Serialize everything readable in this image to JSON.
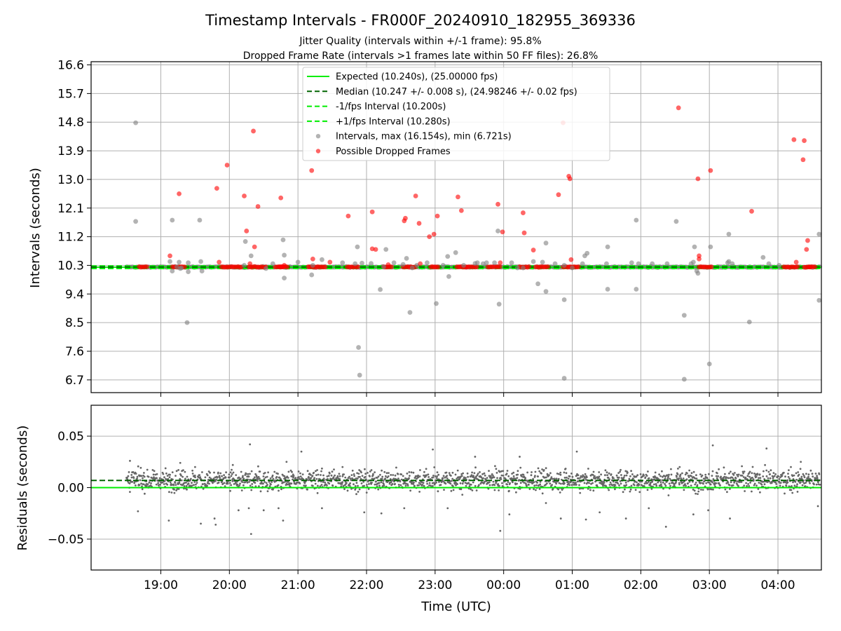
{
  "title": "Timestamp Intervals - FR000F_20240910_182955_369336",
  "subtitles": [
    "Jitter Quality (intervals within +/-1 frame): 95.8%",
    "Dropped Frame Rate (intervals >1 frames late within 50 FF files): 26.8%"
  ],
  "colors": {
    "expected": "#00ee00",
    "median": "#006400",
    "interval_points": "#808080",
    "dropped_points": "#ff0000",
    "residual_points": "#666666",
    "grid": "#b0b0b0"
  },
  "chart_data": [
    {
      "type": "scatter",
      "panel": "intervals",
      "ylabel": "Intervals (seconds)",
      "ylim": [
        6.3,
        16.7
      ],
      "yticks": [
        "6.7",
        "7.6",
        "8.5",
        "9.4",
        "10.3",
        "11.2",
        "12.1",
        "13.0",
        "13.9",
        "14.8",
        "15.7",
        "16.6"
      ],
      "grid": true,
      "legend_position": "top-center",
      "legend": [
        {
          "kind": "line",
          "style": "solid",
          "color": "#00ee00",
          "label": "Expected (10.240s), (25.00000 fps)"
        },
        {
          "kind": "line",
          "style": "dashed",
          "color": "#006400",
          "label": "Median (10.247 +/- 0.008 s), (24.98246 +/- 0.02 fps)"
        },
        {
          "kind": "line",
          "style": "dashed",
          "color": "#00ee00",
          "label": "-1/fps Interval (10.200s)"
        },
        {
          "kind": "line",
          "style": "dashed",
          "color": "#00ee00",
          "label": "+1/fps Interval (10.280s)"
        },
        {
          "kind": "marker",
          "color": "#808080",
          "label": "Intervals, max (16.154s), min (6.721s)"
        },
        {
          "kind": "marker",
          "color": "#ff0000",
          "label": "Possible Dropped Frames"
        }
      ],
      "reference_lines": {
        "expected": 10.24,
        "median": 10.247,
        "minus_1fps": 10.2,
        "plus_1fps": 10.28
      },
      "dense_band": {
        "y": 10.247,
        "x_start": "18:30",
        "x_end": "04:37",
        "description": "continuous band of intervals near the expected value"
      },
      "dropped_clusters": [
        [
          "18:41",
          "18:48"
        ],
        [
          "19:10",
          "19:21"
        ],
        [
          "19:53",
          "20:11"
        ],
        [
          "20:17",
          "20:33"
        ],
        [
          "20:40",
          "20:47"
        ],
        [
          "20:44",
          "20:52"
        ],
        [
          "21:09",
          "21:24"
        ],
        [
          "21:43",
          "21:53"
        ],
        [
          "22:15",
          "22:23"
        ],
        [
          "22:32",
          "22:43"
        ],
        [
          "22:56",
          "23:04"
        ],
        [
          "23:19",
          "23:28"
        ],
        [
          "23:27",
          "23:37"
        ],
        [
          "23:46",
          "23:53"
        ],
        [
          "23:54",
          "23:58"
        ],
        [
          "00:14",
          "00:23"
        ],
        [
          "00:28",
          "00:40"
        ],
        [
          "00:52",
          "01:06"
        ],
        [
          "02:51",
          "03:02"
        ],
        [
          "04:05",
          "04:18"
        ],
        [
          "04:23",
          "04:33"
        ]
      ],
      "series": [
        {
          "name": "Intervals",
          "color": "#808080",
          "points": [
            [
              "18:38",
              14.78
            ],
            [
              "18:38",
              11.68
            ],
            [
              "19:08",
              10.42
            ],
            [
              "19:10",
              10.12
            ],
            [
              "19:10",
              11.72
            ],
            [
              "19:14",
              10.25
            ],
            [
              "19:16",
              10.4
            ],
            [
              "19:17",
              10.2
            ],
            [
              "19:18",
              10.22
            ],
            [
              "19:23",
              8.5
            ],
            [
              "19:24",
              10.1
            ],
            [
              "19:24",
              10.38
            ],
            [
              "19:34",
              11.72
            ],
            [
              "19:35",
              10.42
            ],
            [
              "19:36",
              10.12
            ],
            [
              "20:13",
              10.3
            ],
            [
              "20:14",
              11.05
            ],
            [
              "20:19",
              10.6
            ],
            [
              "20:32",
              10.2
            ],
            [
              "20:38",
              10.35
            ],
            [
              "20:47",
              11.1
            ],
            [
              "20:48",
              10.62
            ],
            [
              "20:48",
              9.9
            ],
            [
              "21:00",
              10.4
            ],
            [
              "21:12",
              10.0
            ],
            [
              "21:13",
              10.3
            ],
            [
              "21:21",
              10.48
            ],
            [
              "21:39",
              10.38
            ],
            [
              "21:50",
              10.35
            ],
            [
              "21:52",
              10.88
            ],
            [
              "21:53",
              7.72
            ],
            [
              "21:54",
              6.85
            ],
            [
              "21:56",
              10.37
            ],
            [
              "22:04",
              10.36
            ],
            [
              "22:12",
              9.54
            ],
            [
              "22:15",
              10.25
            ],
            [
              "22:17",
              10.8
            ],
            [
              "22:24",
              10.38
            ],
            [
              "22:32",
              10.33
            ],
            [
              "22:35",
              10.52
            ],
            [
              "22:38",
              8.82
            ],
            [
              "22:40",
              10.22
            ],
            [
              "22:44",
              10.3
            ],
            [
              "22:53",
              10.38
            ],
            [
              "23:01",
              9.1
            ],
            [
              "23:07",
              10.3
            ],
            [
              "23:11",
              10.58
            ],
            [
              "23:12",
              9.95
            ],
            [
              "23:18",
              10.7
            ],
            [
              "23:25",
              10.3
            ],
            [
              "23:35",
              10.36
            ],
            [
              "23:37",
              10.38
            ],
            [
              "23:42",
              10.35
            ],
            [
              "23:45",
              10.38
            ],
            [
              "23:52",
              10.38
            ],
            [
              "23:55",
              11.38
            ],
            [
              "23:56",
              9.08
            ],
            [
              "00:07",
              10.38
            ],
            [
              "00:12",
              10.22
            ],
            [
              "00:17",
              10.22
            ],
            [
              "00:26",
              10.42
            ],
            [
              "00:30",
              9.72
            ],
            [
              "00:34",
              10.4
            ],
            [
              "00:37",
              11.0
            ],
            [
              "00:37",
              9.48
            ],
            [
              "00:45",
              10.35
            ],
            [
              "00:53",
              10.3
            ],
            [
              "00:53",
              9.22
            ],
            [
              "00:53",
              6.75
            ],
            [
              "01:00",
              10.22
            ],
            [
              "01:09",
              10.35
            ],
            [
              "01:11",
              10.6
            ],
            [
              "01:13",
              10.68
            ],
            [
              "01:30",
              10.35
            ],
            [
              "01:31",
              10.88
            ],
            [
              "01:31",
              9.55
            ],
            [
              "01:52",
              10.38
            ],
            [
              "01:56",
              11.72
            ],
            [
              "01:56",
              9.55
            ],
            [
              "01:58",
              10.35
            ],
            [
              "02:10",
              10.35
            ],
            [
              "02:23",
              10.35
            ],
            [
              "02:31",
              11.68
            ],
            [
              "02:38",
              8.73
            ],
            [
              "02:38",
              6.72
            ],
            [
              "02:44",
              10.35
            ],
            [
              "02:46",
              10.4
            ],
            [
              "02:47",
              10.88
            ],
            [
              "02:49",
              10.12
            ],
            [
              "02:50",
              10.05
            ],
            [
              "03:01",
              10.88
            ],
            [
              "03:00",
              7.2
            ],
            [
              "03:16",
              10.38
            ],
            [
              "03:17",
              11.28
            ],
            [
              "03:17",
              10.42
            ],
            [
              "03:20",
              10.35
            ],
            [
              "03:35",
              8.52
            ],
            [
              "03:47",
              10.55
            ],
            [
              "03:52",
              10.35
            ],
            [
              "04:01",
              10.3
            ],
            [
              "04:36",
              11.28
            ],
            [
              "04:36",
              9.2
            ]
          ]
        },
        {
          "name": "Possible Dropped Frames",
          "color": "#ff0000",
          "points": [
            [
              "19:08",
              10.6
            ],
            [
              "19:16",
              12.55
            ],
            [
              "19:49",
              12.72
            ],
            [
              "19:51",
              10.4
            ],
            [
              "19:58",
              13.45
            ],
            [
              "20:13",
              12.48
            ],
            [
              "20:15",
              11.38
            ],
            [
              "20:18",
              10.35
            ],
            [
              "20:21",
              14.52
            ],
            [
              "20:22",
              10.88
            ],
            [
              "20:25",
              12.15
            ],
            [
              "20:45",
              12.42
            ],
            [
              "20:48",
              10.3
            ],
            [
              "21:12",
              13.28
            ],
            [
              "21:13",
              10.5
            ],
            [
              "21:28",
              10.4
            ],
            [
              "21:44",
              11.85
            ],
            [
              "22:05",
              11.98
            ],
            [
              "22:05",
              10.82
            ],
            [
              "22:08",
              10.8
            ],
            [
              "22:19",
              10.32
            ],
            [
              "22:33",
              11.7
            ],
            [
              "22:34",
              11.78
            ],
            [
              "22:43",
              12.48
            ],
            [
              "22:46",
              11.62
            ],
            [
              "22:47",
              10.35
            ],
            [
              "22:55",
              11.2
            ],
            [
              "22:59",
              11.28
            ],
            [
              "23:02",
              11.85
            ],
            [
              "23:20",
              12.45
            ],
            [
              "23:23",
              12.02
            ],
            [
              "23:55",
              12.22
            ],
            [
              "23:57",
              10.38
            ],
            [
              "23:59",
              11.35
            ],
            [
              "00:17",
              11.95
            ],
            [
              "00:18",
              11.32
            ],
            [
              "00:26",
              10.78
            ],
            [
              "00:48",
              12.52
            ],
            [
              "00:52",
              14.78
            ],
            [
              "00:57",
              13.1
            ],
            [
              "00:58",
              13.02
            ],
            [
              "00:59",
              10.48
            ],
            [
              "02:33",
              15.25
            ],
            [
              "02:50",
              13.02
            ],
            [
              "02:51",
              10.6
            ],
            [
              "02:51",
              10.5
            ],
            [
              "03:01",
              13.28
            ],
            [
              "03:37",
              12.0
            ],
            [
              "04:14",
              14.25
            ],
            [
              "04:16",
              10.4
            ],
            [
              "04:23",
              14.22
            ],
            [
              "04:22",
              13.62
            ],
            [
              "04:26",
              11.08
            ],
            [
              "04:25",
              10.8
            ],
            [
              "04:28",
              10.25
            ]
          ]
        }
      ]
    },
    {
      "type": "scatter",
      "panel": "residuals",
      "xlabel": "Time (UTC)",
      "ylabel": "Residuals (seconds)",
      "ylim": [
        -0.08,
        0.08
      ],
      "yticks": [
        "−0.05",
        "0.00",
        "0.05"
      ],
      "xlim": [
        "17:59",
        "04:38"
      ],
      "xticks": [
        "19:00",
        "20:00",
        "21:00",
        "22:00",
        "23:00",
        "00:00",
        "01:00",
        "02:00",
        "03:00",
        "04:00"
      ],
      "grid": true,
      "reference_lines": {
        "expected": 0.0,
        "median": 0.007
      },
      "series": [
        {
          "name": "Residuals",
          "color": "#666666",
          "x_range": [
            "18:30",
            "04:37"
          ],
          "typical_range": [
            -0.008,
            0.022
          ],
          "center": 0.007,
          "outliers": [
            [
              "18:33",
              0.026
            ],
            [
              "18:40",
              -0.023
            ],
            [
              "19:07",
              -0.032
            ],
            [
              "19:17",
              0.024
            ],
            [
              "19:30",
              0.02
            ],
            [
              "19:35",
              -0.035
            ],
            [
              "19:47",
              -0.03
            ],
            [
              "19:48",
              -0.036
            ],
            [
              "20:03",
              0.022
            ],
            [
              "20:08",
              -0.022
            ],
            [
              "20:17",
              -0.02
            ],
            [
              "20:18",
              0.042
            ],
            [
              "20:19",
              -0.045
            ],
            [
              "20:30",
              -0.022
            ],
            [
              "20:43",
              -0.02
            ],
            [
              "20:47",
              -0.032
            ],
            [
              "20:50",
              0.025
            ],
            [
              "21:03",
              0.035
            ],
            [
              "21:21",
              -0.02
            ],
            [
              "21:39",
              0.02
            ],
            [
              "21:58",
              -0.024
            ],
            [
              "22:13",
              -0.025
            ],
            [
              "22:33",
              -0.02
            ],
            [
              "22:58",
              0.037
            ],
            [
              "23:11",
              -0.02
            ],
            [
              "23:35",
              0.03
            ],
            [
              "23:57",
              -0.042
            ],
            [
              "00:05",
              -0.026
            ],
            [
              "00:14",
              0.03
            ],
            [
              "00:37",
              -0.015
            ],
            [
              "00:50",
              -0.03
            ],
            [
              "01:04",
              0.035
            ],
            [
              "01:12",
              -0.031
            ],
            [
              "01:24",
              -0.024
            ],
            [
              "01:47",
              -0.03
            ],
            [
              "02:07",
              -0.02
            ],
            [
              "02:22",
              -0.038
            ],
            [
              "02:34",
              0.02
            ],
            [
              "02:46",
              -0.026
            ],
            [
              "02:59",
              -0.022
            ],
            [
              "03:03",
              0.041
            ],
            [
              "03:18",
              -0.03
            ],
            [
              "03:50",
              0.038
            ],
            [
              "04:20",
              0.025
            ],
            [
              "04:35",
              -0.018
            ]
          ]
        }
      ]
    }
  ]
}
